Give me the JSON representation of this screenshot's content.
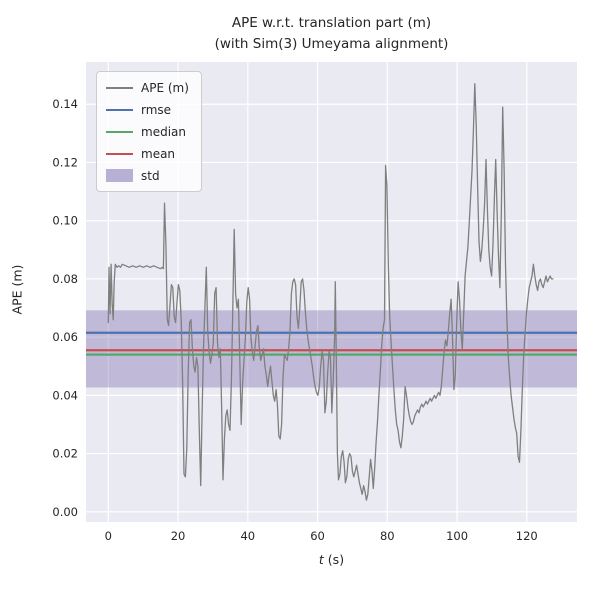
{
  "figure": {
    "title_line1": "APE w.r.t. translation part (m)",
    "title_line2": "(with Sim(3) Umeyama alignment)",
    "ylabel": "APE (m)",
    "xlabel_var": "t",
    "xlabel_unit": " (s)"
  },
  "legend": {
    "entries": [
      {
        "label": "APE (m)",
        "type": "line",
        "color": "#7f7f7f"
      },
      {
        "label": "rmse",
        "type": "line",
        "color": "#4c72b0"
      },
      {
        "label": "median",
        "type": "line",
        "color": "#55a868"
      },
      {
        "label": "mean",
        "type": "line",
        "color": "#c44e52"
      },
      {
        "label": "std",
        "type": "patch",
        "color": "#8172b2"
      }
    ]
  },
  "colors": {
    "axes_bg": "#eaeaf2",
    "grid": "#ffffff",
    "ape_line": "#7f7f7f",
    "rmse": "#4c72b0",
    "median": "#55a868",
    "mean": "#c44e52",
    "std_band": "#8172b2",
    "tick_text": "#262626"
  },
  "chart_data": {
    "type": "line",
    "title": "APE w.r.t. translation part (m) (with Sim(3) Umeyama alignment)",
    "xlabel": "t (s)",
    "ylabel": "APE (m)",
    "grid": true,
    "legend_position": "upper left",
    "xlim": [
      -6.4,
      134.4
    ],
    "ylim": [
      -0.0035,
      0.1545
    ],
    "x_ticks": [
      0,
      20,
      40,
      60,
      80,
      100,
      120
    ],
    "x_tick_labels": [
      "0",
      "20",
      "40",
      "60",
      "80",
      "100",
      "120"
    ],
    "y_ticks": [
      0.0,
      0.02,
      0.04,
      0.06,
      0.08,
      0.1,
      0.12,
      0.14
    ],
    "y_tick_labels": [
      "0.00",
      "0.02",
      "0.04",
      "0.06",
      "0.08",
      "0.10",
      "0.12",
      "0.14"
    ],
    "stats": {
      "rmse": 0.0615,
      "median": 0.054,
      "mean": 0.0555,
      "std_band": [
        0.0427,
        0.0692
      ]
    },
    "series_name": "APE (m)",
    "points": [
      [
        0,
        0.065
      ],
      [
        0.2,
        0.084
      ],
      [
        0.5,
        0.068
      ],
      [
        0.8,
        0.085
      ],
      [
        1.1,
        0.071
      ],
      [
        1.4,
        0.066
      ],
      [
        1.7,
        0.079
      ],
      [
        2,
        0.085
      ],
      [
        2.5,
        0.084
      ],
      [
        3,
        0.0845
      ],
      [
        3.5,
        0.084
      ],
      [
        4,
        0.085
      ],
      [
        5,
        0.0845
      ],
      [
        6,
        0.084
      ],
      [
        7,
        0.0845
      ],
      [
        8,
        0.084
      ],
      [
        9,
        0.0845
      ],
      [
        10,
        0.084
      ],
      [
        11,
        0.0845
      ],
      [
        12,
        0.084
      ],
      [
        13,
        0.0845
      ],
      [
        14,
        0.084
      ],
      [
        15,
        0.0835
      ],
      [
        15.4,
        0.084
      ],
      [
        15.8,
        0.0835
      ],
      [
        16.1,
        0.106
      ],
      [
        16.5,
        0.092
      ],
      [
        16.9,
        0.066
      ],
      [
        17.3,
        0.064
      ],
      [
        17.7,
        0.071
      ],
      [
        18.1,
        0.078
      ],
      [
        18.5,
        0.077
      ],
      [
        18.9,
        0.067
      ],
      [
        19.3,
        0.065
      ],
      [
        19.7,
        0.072
      ],
      [
        20.1,
        0.078
      ],
      [
        20.5,
        0.076
      ],
      [
        20.9,
        0.066
      ],
      [
        21.3,
        0.045
      ],
      [
        21.7,
        0.013
      ],
      [
        22.1,
        0.012
      ],
      [
        22.5,
        0.022
      ],
      [
        22.9,
        0.048
      ],
      [
        23.3,
        0.065
      ],
      [
        23.7,
        0.066
      ],
      [
        24.1,
        0.056
      ],
      [
        24.5,
        0.05
      ],
      [
        24.9,
        0.048
      ],
      [
        25.3,
        0.053
      ],
      [
        25.7,
        0.05
      ],
      [
        26.1,
        0.028
      ],
      [
        26.5,
        0.009
      ],
      [
        26.9,
        0.034
      ],
      [
        27.3,
        0.056
      ],
      [
        27.7,
        0.07
      ],
      [
        28.1,
        0.084
      ],
      [
        28.5,
        0.062
      ],
      [
        28.9,
        0.055
      ],
      [
        29.3,
        0.051
      ],
      [
        29.7,
        0.054
      ],
      [
        30.1,
        0.058
      ],
      [
        30.5,
        0.075
      ],
      [
        30.9,
        0.077
      ],
      [
        31.3,
        0.058
      ],
      [
        31.7,
        0.053
      ],
      [
        32.1,
        0.056
      ],
      [
        32.5,
        0.035
      ],
      [
        32.9,
        0.011
      ],
      [
        33.3,
        0.025
      ],
      [
        33.7,
        0.033
      ],
      [
        34.1,
        0.035
      ],
      [
        34.5,
        0.03
      ],
      [
        34.9,
        0.028
      ],
      [
        35.3,
        0.045
      ],
      [
        35.7,
        0.07
      ],
      [
        36.1,
        0.097
      ],
      [
        36.5,
        0.075
      ],
      [
        36.9,
        0.07
      ],
      [
        37.3,
        0.073
      ],
      [
        37.7,
        0.052
      ],
      [
        38.1,
        0.03
      ],
      [
        38.5,
        0.044
      ],
      [
        38.9,
        0.052
      ],
      [
        39.3,
        0.06
      ],
      [
        39.7,
        0.072
      ],
      [
        40.1,
        0.077
      ],
      [
        40.5,
        0.073
      ],
      [
        40.9,
        0.06
      ],
      [
        41.3,
        0.055
      ],
      [
        41.7,
        0.052
      ],
      [
        42.1,
        0.057
      ],
      [
        42.5,
        0.062
      ],
      [
        42.9,
        0.064
      ],
      [
        43.3,
        0.056
      ],
      [
        43.7,
        0.052
      ],
      [
        44.1,
        0.054
      ],
      [
        44.5,
        0.056
      ],
      [
        44.9,
        0.05
      ],
      [
        45.3,
        0.047
      ],
      [
        45.7,
        0.043
      ],
      [
        46.1,
        0.047
      ],
      [
        46.5,
        0.05
      ],
      [
        46.9,
        0.045
      ],
      [
        47.3,
        0.04
      ],
      [
        47.7,
        0.038
      ],
      [
        48.1,
        0.042
      ],
      [
        48.5,
        0.037
      ],
      [
        48.9,
        0.026
      ],
      [
        49.3,
        0.025
      ],
      [
        49.7,
        0.03
      ],
      [
        50.1,
        0.046
      ],
      [
        50.5,
        0.054
      ],
      [
        50.9,
        0.053
      ],
      [
        51.3,
        0.052
      ],
      [
        51.7,
        0.056
      ],
      [
        52.1,
        0.062
      ],
      [
        52.5,
        0.075
      ],
      [
        52.9,
        0.079
      ],
      [
        53.3,
        0.08
      ],
      [
        53.7,
        0.078
      ],
      [
        54.1,
        0.067
      ],
      [
        54.5,
        0.063
      ],
      [
        54.9,
        0.07
      ],
      [
        55.3,
        0.079
      ],
      [
        55.7,
        0.08
      ],
      [
        56.1,
        0.076
      ],
      [
        56.5,
        0.069
      ],
      [
        56.9,
        0.063
      ],
      [
        57.3,
        0.059
      ],
      [
        57.7,
        0.056
      ],
      [
        58.1,
        0.053
      ],
      [
        58.5,
        0.05
      ],
      [
        58.9,
        0.046
      ],
      [
        59.3,
        0.043
      ],
      [
        59.7,
        0.041
      ],
      [
        60.1,
        0.04
      ],
      [
        60.5,
        0.043
      ],
      [
        60.9,
        0.05
      ],
      [
        61.3,
        0.055
      ],
      [
        61.7,
        0.052
      ],
      [
        62.1,
        0.034
      ],
      [
        62.5,
        0.038
      ],
      [
        62.9,
        0.048
      ],
      [
        63.3,
        0.055
      ],
      [
        63.7,
        0.053
      ],
      [
        64.1,
        0.034
      ],
      [
        64.5,
        0.045
      ],
      [
        64.9,
        0.06
      ],
      [
        65.1,
        0.079
      ],
      [
        65.4,
        0.05
      ],
      [
        65.7,
        0.02
      ],
      [
        66,
        0.011
      ],
      [
        66.4,
        0.013
      ],
      [
        66.8,
        0.019
      ],
      [
        67.2,
        0.021
      ],
      [
        67.6,
        0.017
      ],
      [
        68,
        0.01
      ],
      [
        68.4,
        0.012
      ],
      [
        68.8,
        0.018
      ],
      [
        69.2,
        0.02
      ],
      [
        69.6,
        0.019
      ],
      [
        70,
        0.014
      ],
      [
        70.4,
        0.012
      ],
      [
        70.8,
        0.014
      ],
      [
        71.2,
        0.016
      ],
      [
        71.6,
        0.013
      ],
      [
        72,
        0.01
      ],
      [
        72.4,
        0.008
      ],
      [
        72.8,
        0.006
      ],
      [
        73.2,
        0.009
      ],
      [
        73.6,
        0.007
      ],
      [
        74,
        0.004
      ],
      [
        74.4,
        0.006
      ],
      [
        74.8,
        0.012
      ],
      [
        75.2,
        0.018
      ],
      [
        75.6,
        0.014
      ],
      [
        76,
        0.008
      ],
      [
        76.4,
        0.015
      ],
      [
        76.8,
        0.024
      ],
      [
        77.2,
        0.031
      ],
      [
        77.6,
        0.04
      ],
      [
        78,
        0.048
      ],
      [
        78.4,
        0.057
      ],
      [
        78.8,
        0.063
      ],
      [
        79.2,
        0.066
      ],
      [
        79.5,
        0.119
      ],
      [
        79.9,
        0.112
      ],
      [
        80.3,
        0.085
      ],
      [
        80.7,
        0.067
      ],
      [
        81.1,
        0.058
      ],
      [
        81.5,
        0.05
      ],
      [
        81.9,
        0.042
      ],
      [
        82.3,
        0.035
      ],
      [
        82.7,
        0.03
      ],
      [
        83.1,
        0.028
      ],
      [
        83.5,
        0.024
      ],
      [
        83.9,
        0.022
      ],
      [
        84.3,
        0.026
      ],
      [
        84.7,
        0.032
      ],
      [
        85.1,
        0.043
      ],
      [
        85.5,
        0.04
      ],
      [
        85.9,
        0.036
      ],
      [
        86.3,
        0.033
      ],
      [
        86.7,
        0.031
      ],
      [
        87.1,
        0.03
      ],
      [
        87.5,
        0.031
      ],
      [
        87.9,
        0.033
      ],
      [
        88.3,
        0.034
      ],
      [
        88.7,
        0.035
      ],
      [
        89.1,
        0.034
      ],
      [
        89.5,
        0.036
      ],
      [
        89.9,
        0.037
      ],
      [
        90.3,
        0.036
      ],
      [
        90.7,
        0.037
      ],
      [
        91.1,
        0.038
      ],
      [
        91.5,
        0.037
      ],
      [
        91.9,
        0.038
      ],
      [
        92.3,
        0.039
      ],
      [
        92.7,
        0.038
      ],
      [
        93.1,
        0.039
      ],
      [
        93.5,
        0.04
      ],
      [
        93.9,
        0.039
      ],
      [
        94.3,
        0.04
      ],
      [
        94.7,
        0.041
      ],
      [
        95.1,
        0.04
      ],
      [
        95.5,
        0.043
      ],
      [
        95.9,
        0.049
      ],
      [
        96.3,
        0.055
      ],
      [
        96.7,
        0.059
      ],
      [
        97.1,
        0.057
      ],
      [
        97.5,
        0.062
      ],
      [
        97.9,
        0.068
      ],
      [
        98.3,
        0.073
      ],
      [
        98.7,
        0.06
      ],
      [
        99.1,
        0.042
      ],
      [
        99.5,
        0.047
      ],
      [
        99.9,
        0.065
      ],
      [
        100.3,
        0.079
      ],
      [
        100.7,
        0.073
      ],
      [
        101.1,
        0.062
      ],
      [
        101.5,
        0.056
      ],
      [
        101.9,
        0.068
      ],
      [
        102.3,
        0.081
      ],
      [
        102.7,
        0.086
      ],
      [
        103.1,
        0.091
      ],
      [
        103.5,
        0.099
      ],
      [
        103.9,
        0.108
      ],
      [
        104.3,
        0.117
      ],
      [
        104.7,
        0.131
      ],
      [
        105.1,
        0.147
      ],
      [
        105.5,
        0.133
      ],
      [
        105.9,
        0.112
      ],
      [
        106.3,
        0.093
      ],
      [
        106.7,
        0.086
      ],
      [
        107.1,
        0.09
      ],
      [
        107.5,
        0.097
      ],
      [
        107.9,
        0.106
      ],
      [
        108.3,
        0.121
      ],
      [
        108.7,
        0.104
      ],
      [
        109.1,
        0.09
      ],
      [
        109.5,
        0.084
      ],
      [
        109.9,
        0.081
      ],
      [
        110.3,
        0.092
      ],
      [
        110.7,
        0.108
      ],
      [
        111.1,
        0.121
      ],
      [
        111.5,
        0.103
      ],
      [
        111.9,
        0.088
      ],
      [
        112.3,
        0.077
      ],
      [
        112.7,
        0.102
      ],
      [
        113.1,
        0.139
      ],
      [
        113.5,
        0.118
      ],
      [
        113.9,
        0.085
      ],
      [
        114.3,
        0.066
      ],
      [
        114.7,
        0.053
      ],
      [
        115.1,
        0.046
      ],
      [
        115.5,
        0.04
      ],
      [
        115.9,
        0.036
      ],
      [
        116.3,
        0.032
      ],
      [
        116.7,
        0.029
      ],
      [
        117.1,
        0.027
      ],
      [
        117.5,
        0.019
      ],
      [
        117.9,
        0.017
      ],
      [
        118.3,
        0.028
      ],
      [
        118.7,
        0.042
      ],
      [
        119.1,
        0.053
      ],
      [
        119.5,
        0.061
      ],
      [
        119.9,
        0.068
      ],
      [
        120.3,
        0.073
      ],
      [
        120.7,
        0.077
      ],
      [
        121.1,
        0.079
      ],
      [
        121.5,
        0.081
      ],
      [
        121.9,
        0.085
      ],
      [
        122.3,
        0.081
      ],
      [
        122.7,
        0.078
      ],
      [
        123.1,
        0.076
      ],
      [
        123.5,
        0.079
      ],
      [
        123.9,
        0.08
      ],
      [
        124.3,
        0.078
      ],
      [
        124.7,
        0.077
      ],
      [
        125.1,
        0.079
      ],
      [
        125.5,
        0.081
      ],
      [
        125.9,
        0.079
      ],
      [
        126.3,
        0.08
      ],
      [
        126.7,
        0.081
      ],
      [
        127.1,
        0.08
      ],
      [
        127.5,
        0.08
      ]
    ]
  }
}
